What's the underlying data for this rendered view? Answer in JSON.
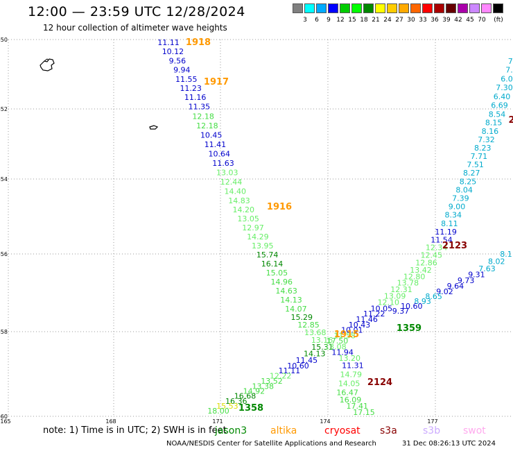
{
  "header": {
    "title": "12:00 — 23:59 UTC 12/28/2024",
    "subtitle": "12 hour collection of altimeter wave heights"
  },
  "legend": {
    "colors": [
      "#808080",
      "#00ffff",
      "#00aaff",
      "#0000ff",
      "#00cc00",
      "#00ff00",
      "#008800",
      "#ffff00",
      "#ffcc00",
      "#ffaa00",
      "#ff6600",
      "#ff0000",
      "#aa0000",
      "#660000",
      "#aa00aa",
      "#cc88ff",
      "#ff88ff",
      "#000000"
    ],
    "labels": [
      "3",
      "6",
      "9",
      "12",
      "15",
      "18",
      "21",
      "24",
      "27",
      "30",
      "33",
      "36",
      "39",
      "42",
      "45",
      "70"
    ],
    "unit": "(ft)"
  },
  "axes": {
    "lat_labels": [
      "-50",
      "-52",
      "-54",
      "-56",
      "-58",
      "-60"
    ],
    "lon_labels": [
      "165",
      "168",
      "171",
      "174",
      "177"
    ]
  },
  "passes": [
    {
      "id": "1918",
      "color": "#ff9900",
      "class": "pid"
    },
    {
      "id": "1917",
      "color": "#ff9900",
      "class": "pid"
    },
    {
      "id": "1916",
      "color": "#ff9900",
      "class": "pid"
    },
    {
      "id": "1915",
      "color": "#ff9900",
      "class": "pid"
    },
    {
      "id": "2123",
      "color": "#880000",
      "class": "pid"
    },
    {
      "id": "2124",
      "color": "#880000",
      "class": "pid"
    },
    {
      "id": "1359",
      "color": "#008800",
      "class": "pid"
    },
    {
      "id": "1358",
      "color": "#008800",
      "class": "pid"
    },
    {
      "id": "2",
      "color": "#880000",
      "class": "pid"
    }
  ],
  "track1": {
    "values": [
      "11.11",
      "10.12",
      "9.56",
      "9.94",
      "11.55",
      "11.23",
      "11.16",
      "11.35",
      "12.18",
      "12.18",
      "10.45",
      "11.41",
      "10.64",
      "11.63",
      "13.03",
      "12.44",
      "14.40",
      "14.83",
      "14.20",
      "13.05",
      "12.97",
      "14.29",
      "13.95",
      "15.74",
      "16.14",
      "15.05",
      "14.96",
      "14.63",
      "14.13",
      "14.07",
      "15.29",
      "12.85",
      "13.68",
      "13.16",
      "15.31",
      "14.13",
      "11.45",
      "10.60",
      "11.11",
      "12.22",
      "13.52",
      "13.38",
      "14.92",
      "16.68",
      "16.36",
      "15.53",
      "18.00"
    ],
    "colors": [
      "#0000cc",
      "#0000cc",
      "#0000cc",
      "#0000cc",
      "#0000cc",
      "#0000cc",
      "#0000cc",
      "#0000cc",
      "#44dd44",
      "#44dd44",
      "#0000cc",
      "#0000cc",
      "#0000cc",
      "#0000cc",
      "#66ee66",
      "#66ee66",
      "#66ee66",
      "#66ee66",
      "#66ee66",
      "#66ee66",
      "#66ee66",
      "#66ee66",
      "#66ee66",
      "#008800",
      "#008800",
      "#44dd44",
      "#44dd44",
      "#44dd44",
      "#44dd44",
      "#44dd44",
      "#008800",
      "#44dd44",
      "#66ee66",
      "#66ee66",
      "#008800",
      "#008800",
      "#0000cc",
      "#0000cc",
      "#0000cc",
      "#66ee66",
      "#44dd44",
      "#44dd44",
      "#44dd44",
      "#008800",
      "#008800",
      "#dddd00",
      "#44dd44"
    ]
  },
  "track2": {
    "values": [
      "7.",
      "7.",
      "6.0",
      "7.30",
      "6.40",
      "6.69",
      "8.54",
      "8.15",
      "8.16",
      "7.32",
      "8.23",
      "7.71",
      "7.51",
      "8.27",
      "8.25",
      "8.04",
      "7.39",
      "9.00",
      "8.34",
      "8.11",
      "11.19",
      "11.54",
      "12.34",
      "12.45",
      "12.86",
      "13.42",
      "12.80",
      "13.78",
      "12.31",
      "13.09",
      "12.10",
      "10.05",
      "11.22",
      "11.46",
      "10.43",
      "10.01",
      "11.58",
      "17.50",
      "13.08",
      "11.94",
      "13.20",
      "11.31",
      "14.79",
      "14.05",
      "16.47",
      "16.09",
      "17.41",
      "17.15"
    ],
    "colors": [
      "#00aacc",
      "#00aacc",
      "#00aacc",
      "#00aacc",
      "#00aacc",
      "#00aacc",
      "#00aacc",
      "#00aacc",
      "#00aacc",
      "#00aacc",
      "#00aacc",
      "#00aacc",
      "#00aacc",
      "#00aacc",
      "#00aacc",
      "#00aacc",
      "#00aacc",
      "#00aacc",
      "#00aacc",
      "#00aacc",
      "#0000cc",
      "#0000cc",
      "#66ee66",
      "#66ee66",
      "#66ee66",
      "#66ee66",
      "#66ee66",
      "#66ee66",
      "#66ee66",
      "#66ee66",
      "#66ee66",
      "#0000cc",
      "#0000cc",
      "#0000cc",
      "#0000cc",
      "#0000cc",
      "#66ee66",
      "#44dd44",
      "#66ee66",
      "#0000cc",
      "#66ee66",
      "#0000cc",
      "#66ee66",
      "#66ee66",
      "#44dd44",
      "#44dd44",
      "#44dd44",
      "#44dd44"
    ]
  },
  "track3": {
    "values": [
      "8.1",
      "8.02",
      "7.63",
      "9.31",
      "9.73",
      "9.64",
      "9.02",
      "8.65",
      "8.93",
      "10.60",
      "9.37"
    ],
    "colors": [
      "#00aacc",
      "#00aacc",
      "#00aacc",
      "#0000cc",
      "#0000cc",
      "#0000cc",
      "#0000cc",
      "#00aacc",
      "#00aacc",
      "#0000cc",
      "#0000cc"
    ]
  },
  "footer": {
    "note": "note:  1) Time is in UTC; 2) SWH is in feet",
    "satellites": [
      {
        "name": "jason3",
        "color": "#008800"
      },
      {
        "name": "altika",
        "color": "#ff9900"
      },
      {
        "name": "cryosat",
        "color": "#ff0000"
      },
      {
        "name": "s3a",
        "color": "#880000"
      },
      {
        "name": "s3b",
        "color": "#ccaaff"
      },
      {
        "name": "swot",
        "color": "#ffaaee"
      }
    ],
    "credit": "NOAA/NESDIS Center for Satellite Applications and Research",
    "timestamp": "31 Dec 08:26:13 UTC 2024"
  }
}
